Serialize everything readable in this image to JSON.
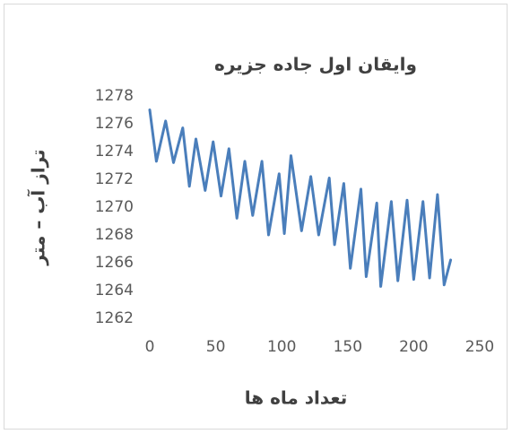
{
  "chart_data": {
    "type": "line",
    "title": "وایقان اول جاده جزیره",
    "x_label": "تعداد ماه ها",
    "y_label": "تراز آب – متر",
    "x": [
      0,
      5,
      12,
      18,
      25,
      30,
      35,
      42,
      48,
      54,
      60,
      66,
      72,
      78,
      85,
      90,
      98,
      102,
      107,
      115,
      122,
      128,
      136,
      140,
      147,
      152,
      160,
      164,
      172,
      175,
      183,
      188,
      195,
      200,
      207,
      212,
      218,
      223,
      228
    ],
    "series": [
      {
        "color": "#4a7ebb",
        "values": [
          1277,
          1273.3,
          1276.2,
          1273.2,
          1275.7,
          1271.5,
          1274.9,
          1271.2,
          1274.7,
          1270.8,
          1274.2,
          1269.2,
          1273.3,
          1269.4,
          1273.3,
          1268,
          1272.4,
          1268.1,
          1273.7,
          1268.3,
          1272.2,
          1268,
          1272.1,
          1267.3,
          1271.7,
          1265.6,
          1271.3,
          1265,
          1270.3,
          1264.3,
          1270.4,
          1264.7,
          1270.5,
          1264.8,
          1270.4,
          1264.9,
          1270.9,
          1264.4,
          1266.2
        ]
      }
    ],
    "xlim": [
      0,
      250
    ],
    "xticks": [
      0,
      50,
      100,
      150,
      200,
      250
    ],
    "ylim": [
      1262,
      1278
    ],
    "yticks": [
      1262,
      1264,
      1266,
      1268,
      1270,
      1272,
      1274,
      1276,
      1278
    ],
    "grid": false
  }
}
